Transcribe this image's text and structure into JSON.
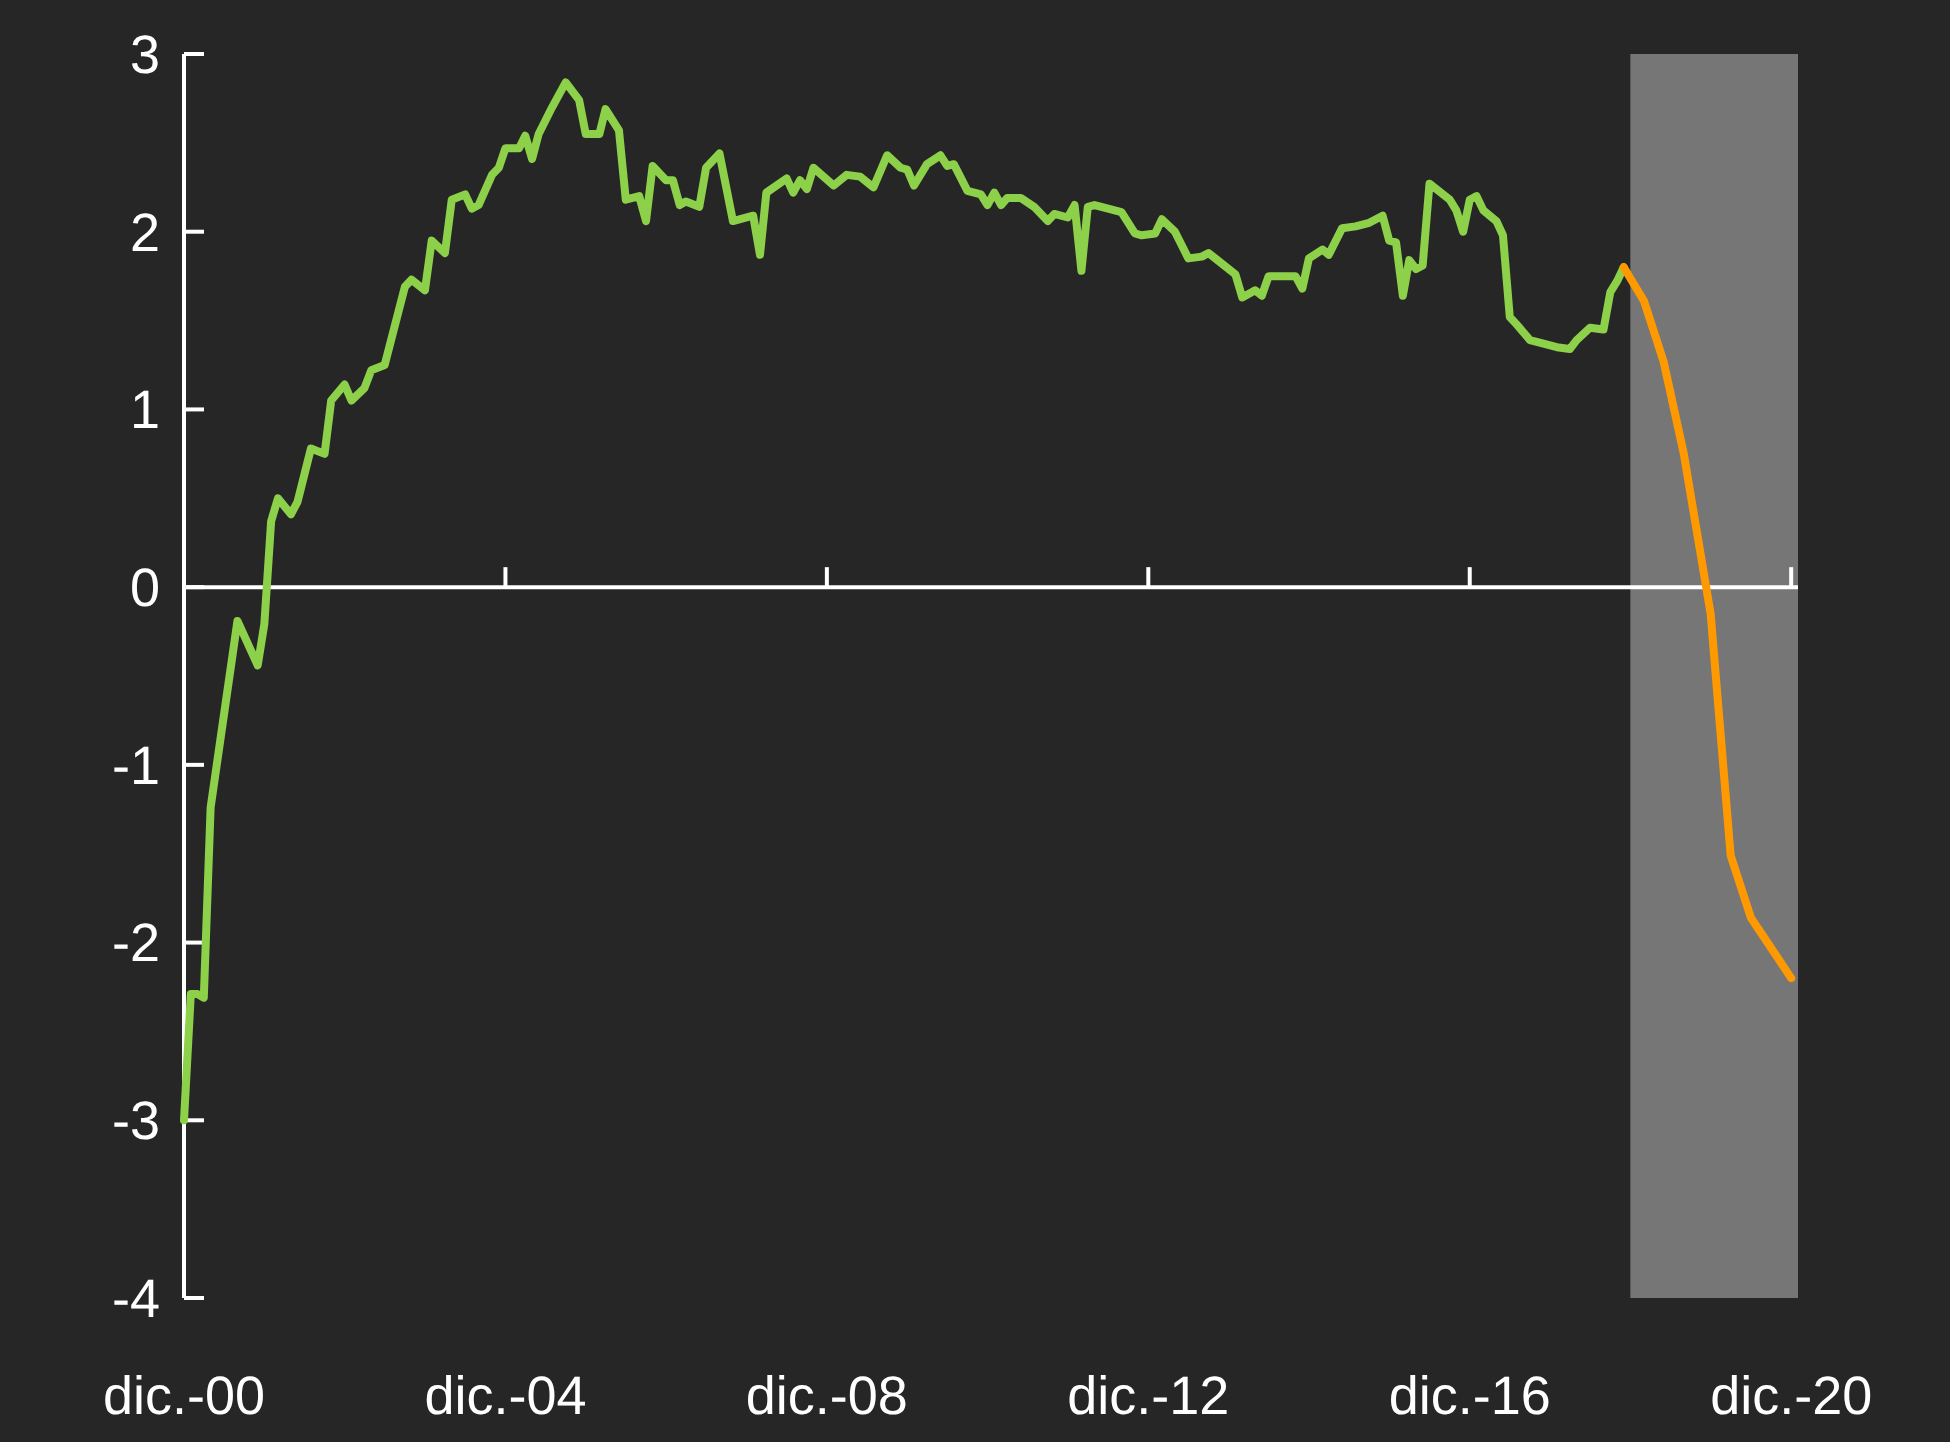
{
  "chart_data": {
    "type": "line",
    "xlim": [
      "2000-12",
      "2021-01"
    ],
    "ylim": [
      -4,
      3
    ],
    "xticks": [
      {
        "value": "2000-12",
        "label": "dic.-00"
      },
      {
        "value": "2004-12",
        "label": "dic.-04"
      },
      {
        "value": "2008-12",
        "label": "dic.-08"
      },
      {
        "value": "2012-12",
        "label": "dic.-12"
      },
      {
        "value": "2016-12",
        "label": "dic.-16"
      },
      {
        "value": "2020-12",
        "label": "dic.-20"
      }
    ],
    "yticks": [
      -4,
      -3,
      -2,
      -1,
      0,
      1,
      2,
      3
    ],
    "marker": "none",
    "line_style": "solid",
    "bands": [
      {
        "axis": "x",
        "from": "2018-12",
        "to": "2021-01",
        "color": "#808080"
      }
    ],
    "series": [
      {
        "color": "#8dd04a",
        "x": [
          "2000-12",
          "2001-01",
          "2001-02",
          "2001-03",
          "2001-04",
          "2001-08",
          "2001-11",
          "2001-12",
          "2002-01",
          "2002-02",
          "2002-04",
          "2002-05",
          "2002-07",
          "2002-09",
          "2002-10",
          "2002-12",
          "2003-01",
          "2003-03",
          "2003-04",
          "2003-06",
          "2003-09",
          "2003-10",
          "2003-12",
          "2004-01",
          "2004-03",
          "2004-04",
          "2004-06",
          "2004-07",
          "2004-08",
          "2004-10",
          "2004-11",
          "2004-12",
          "2005-02",
          "2005-03",
          "2005-04",
          "2005-05",
          "2005-07",
          "2005-09",
          "2005-11",
          "2005-12",
          "2006-02",
          "2006-03",
          "2006-05",
          "2006-06",
          "2006-08",
          "2006-09",
          "2006-10",
          "2006-12",
          "2007-01",
          "2007-02",
          "2007-03",
          "2007-05",
          "2007-06",
          "2007-08",
          "2007-10",
          "2008-01",
          "2008-02",
          "2008-03",
          "2008-06",
          "2008-07",
          "2008-08",
          "2008-09",
          "2008-10",
          "2009-01",
          "2009-03",
          "2009-05",
          "2009-07",
          "2009-09",
          "2009-11",
          "2009-12",
          "2010-01",
          "2010-03",
          "2010-05",
          "2010-06",
          "2010-07",
          "2010-09",
          "2010-11",
          "2010-12",
          "2011-01",
          "2011-02",
          "2011-03",
          "2011-05",
          "2011-07",
          "2011-09",
          "2011-10",
          "2011-12",
          "2012-01",
          "2012-02",
          "2012-03",
          "2012-04",
          "2012-08",
          "2012-10",
          "2012-11",
          "2013-01",
          "2013-02",
          "2013-04",
          "2013-06",
          "2013-08",
          "2013-09",
          "2014-01",
          "2014-02",
          "2014-04",
          "2014-05",
          "2014-06",
          "2014-10",
          "2014-11",
          "2014-12",
          "2015-02",
          "2015-03",
          "2015-05",
          "2015-07",
          "2015-09",
          "2015-11",
          "2015-12",
          "2016-01",
          "2016-02",
          "2016-03",
          "2016-04",
          "2016-05",
          "2016-06",
          "2016-09",
          "2016-10",
          "2016-11",
          "2016-12",
          "2017-01",
          "2017-02",
          "2017-04",
          "2017-05",
          "2017-06",
          "2017-07",
          "2017-09",
          "2018-01",
          "2018-03",
          "2018-04",
          "2018-06",
          "2018-08",
          "2018-09",
          "2018-10",
          "2018-11"
        ],
        "values": [
          -3.0,
          -2.29,
          -2.29,
          -2.31,
          -1.24,
          -0.19,
          -0.44,
          -0.21,
          0.37,
          0.5,
          0.41,
          0.48,
          0.78,
          0.75,
          1.05,
          1.14,
          1.05,
          1.12,
          1.22,
          1.25,
          1.69,
          1.73,
          1.67,
          1.95,
          1.88,
          2.18,
          2.21,
          2.13,
          2.15,
          2.32,
          2.36,
          2.47,
          2.47,
          2.54,
          2.41,
          2.55,
          2.7,
          2.84,
          2.74,
          2.55,
          2.55,
          2.69,
          2.57,
          2.18,
          2.2,
          2.06,
          2.37,
          2.29,
          2.29,
          2.15,
          2.17,
          2.14,
          2.36,
          2.44,
          2.06,
          2.09,
          1.87,
          2.22,
          2.3,
          2.22,
          2.29,
          2.24,
          2.36,
          2.26,
          2.32,
          2.31,
          2.25,
          2.43,
          2.36,
          2.35,
          2.26,
          2.38,
          2.43,
          2.37,
          2.38,
          2.23,
          2.21,
          2.15,
          2.22,
          2.15,
          2.19,
          2.19,
          2.14,
          2.06,
          2.1,
          2.08,
          2.15,
          1.78,
          2.14,
          2.15,
          2.11,
          1.99,
          1.98,
          1.99,
          2.07,
          2.0,
          1.85,
          1.86,
          1.88,
          1.76,
          1.63,
          1.67,
          1.64,
          1.75,
          1.75,
          1.68,
          1.85,
          1.9,
          1.87,
          2.02,
          2.03,
          2.05,
          2.09,
          1.95,
          1.94,
          1.64,
          1.84,
          1.79,
          1.81,
          2.27,
          2.18,
          2.12,
          2.0,
          2.18,
          2.2,
          2.12,
          2.06,
          1.98,
          1.52,
          1.48,
          1.39,
          1.35,
          1.34,
          1.39,
          1.46,
          1.45,
          1.66,
          1.72,
          1.8
        ]
      },
      {
        "color": "#ff9900",
        "x": [
          "2018-11",
          "2019-02",
          "2019-05",
          "2019-08",
          "2019-11",
          "2019-12",
          "2020-03",
          "2020-06",
          "2020-12"
        ],
        "values": [
          1.8,
          1.61,
          1.27,
          0.75,
          0.07,
          -0.15,
          -1.51,
          -1.86,
          -2.2
        ]
      }
    ]
  }
}
